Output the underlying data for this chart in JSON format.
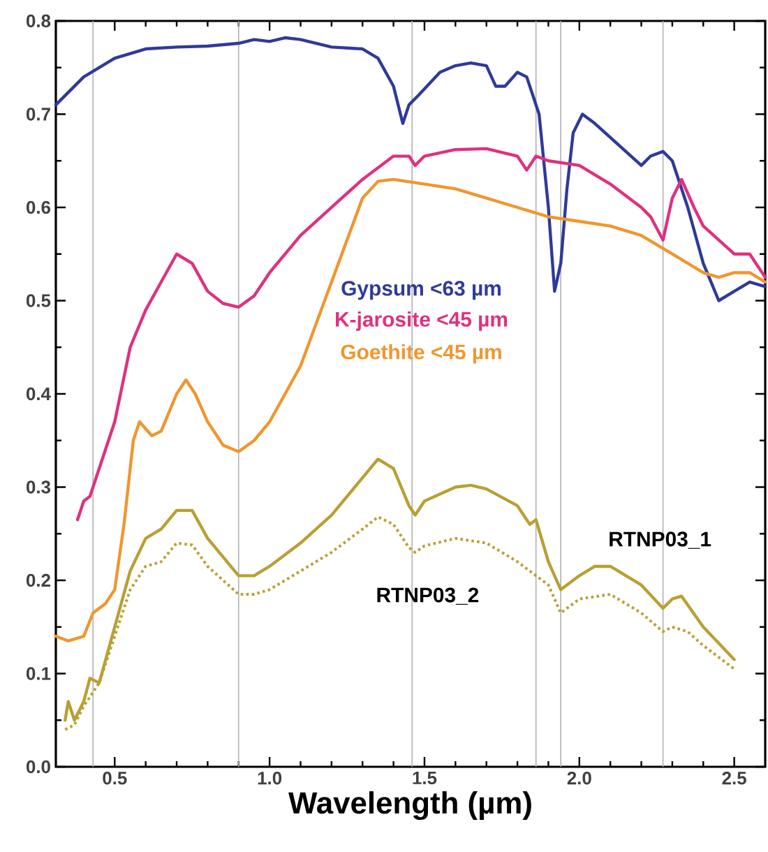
{
  "chart_data": {
    "type": "line",
    "xlabel": "Wavelength (µm)",
    "xlim": [
      0.31,
      2.6
    ],
    "ylim": [
      0,
      0.8
    ],
    "xticks": [
      0.5,
      {
        "value": 1.0,
        "label": "1.0"
      },
      1.5,
      {
        "value": 2.0,
        "label": "2.0"
      },
      2.5
    ],
    "yticks": [
      {
        "value": 0,
        "label": "0.0"
      },
      0.1,
      0.2,
      0.3,
      0.4,
      0.5,
      0.6,
      0.7,
      0.8
    ],
    "grid": false,
    "marker": "none",
    "ref_lines": [
      {
        "axis": "x",
        "value": 0.43,
        "color": "#b0b0b0"
      },
      {
        "axis": "x",
        "value": 0.9,
        "color": "#b0b0b0"
      },
      {
        "axis": "x",
        "value": 1.46,
        "color": "#b0b0b0"
      },
      {
        "axis": "x",
        "value": 1.86,
        "color": "#b0b0b0"
      },
      {
        "axis": "x",
        "value": 1.94,
        "color": "#b0b0b0"
      },
      {
        "axis": "x",
        "value": 2.27,
        "color": "#b0b0b0"
      }
    ],
    "series": [
      {
        "name": "Gypsum <63 µm",
        "color": "#2e3a9a",
        "line_style": "solid",
        "x": [
          0.31,
          0.4,
          0.5,
          0.6,
          0.7,
          0.8,
          0.9,
          0.95,
          1.0,
          1.05,
          1.1,
          1.2,
          1.3,
          1.35,
          1.4,
          1.43,
          1.45,
          1.48,
          1.55,
          1.6,
          1.65,
          1.7,
          1.73,
          1.76,
          1.8,
          1.83,
          1.87,
          1.9,
          1.92,
          1.94,
          1.96,
          1.98,
          2.01,
          2.05,
          2.1,
          2.15,
          2.2,
          2.23,
          2.27,
          2.3,
          2.35,
          2.4,
          2.45,
          2.5,
          2.55,
          2.6
        ],
        "values": [
          0.71,
          0.74,
          0.76,
          0.77,
          0.772,
          0.773,
          0.776,
          0.78,
          0.778,
          0.782,
          0.78,
          0.772,
          0.77,
          0.76,
          0.73,
          0.69,
          0.71,
          0.72,
          0.745,
          0.752,
          0.755,
          0.752,
          0.73,
          0.73,
          0.745,
          0.74,
          0.7,
          0.6,
          0.51,
          0.54,
          0.62,
          0.68,
          0.7,
          0.69,
          0.675,
          0.66,
          0.645,
          0.655,
          0.66,
          0.65,
          0.6,
          0.54,
          0.5,
          0.51,
          0.52,
          0.515
        ]
      },
      {
        "name": "K-jarosite <45 µm",
        "color": "#e0307f",
        "line_style": "solid",
        "x": [
          0.38,
          0.4,
          0.42,
          0.45,
          0.5,
          0.55,
          0.6,
          0.65,
          0.7,
          0.75,
          0.8,
          0.85,
          0.9,
          0.95,
          1.0,
          1.1,
          1.2,
          1.3,
          1.4,
          1.45,
          1.47,
          1.5,
          1.6,
          1.7,
          1.8,
          1.83,
          1.86,
          1.9,
          2.0,
          2.1,
          2.2,
          2.23,
          2.27,
          2.3,
          2.33,
          2.37,
          2.4,
          2.45,
          2.5,
          2.55,
          2.6
        ],
        "values": [
          0.265,
          0.285,
          0.29,
          0.32,
          0.37,
          0.45,
          0.49,
          0.52,
          0.55,
          0.54,
          0.51,
          0.497,
          0.493,
          0.505,
          0.53,
          0.57,
          0.6,
          0.63,
          0.655,
          0.655,
          0.645,
          0.655,
          0.662,
          0.663,
          0.655,
          0.64,
          0.655,
          0.65,
          0.645,
          0.625,
          0.6,
          0.59,
          0.565,
          0.61,
          0.63,
          0.6,
          0.58,
          0.565,
          0.55,
          0.55,
          0.525
        ]
      },
      {
        "name": "Goethite <45 µm",
        "color": "#f0962e",
        "line_style": "solid",
        "x": [
          0.31,
          0.35,
          0.4,
          0.43,
          0.47,
          0.5,
          0.53,
          0.56,
          0.58,
          0.62,
          0.65,
          0.7,
          0.73,
          0.76,
          0.8,
          0.85,
          0.9,
          0.95,
          1.0,
          1.1,
          1.2,
          1.3,
          1.35,
          1.4,
          1.5,
          1.6,
          1.7,
          1.8,
          1.9,
          2.0,
          2.1,
          2.2,
          2.3,
          2.4,
          2.45,
          2.5,
          2.55,
          2.6
        ],
        "values": [
          0.14,
          0.135,
          0.14,
          0.165,
          0.175,
          0.19,
          0.26,
          0.35,
          0.37,
          0.355,
          0.36,
          0.4,
          0.415,
          0.4,
          0.37,
          0.345,
          0.338,
          0.35,
          0.37,
          0.43,
          0.52,
          0.61,
          0.628,
          0.63,
          0.625,
          0.62,
          0.61,
          0.6,
          0.59,
          0.585,
          0.58,
          0.57,
          0.55,
          0.53,
          0.525,
          0.53,
          0.53,
          0.52
        ]
      },
      {
        "name": "RTNP03_1",
        "color": "#b8a032",
        "line_style": "solid",
        "x": [
          0.34,
          0.35,
          0.37,
          0.4,
          0.42,
          0.45,
          0.5,
          0.55,
          0.6,
          0.65,
          0.7,
          0.75,
          0.8,
          0.9,
          0.95,
          1.0,
          1.1,
          1.2,
          1.3,
          1.35,
          1.4,
          1.45,
          1.47,
          1.5,
          1.6,
          1.65,
          1.7,
          1.8,
          1.84,
          1.86,
          1.9,
          1.94,
          2.0,
          2.05,
          2.1,
          2.2,
          2.27,
          2.3,
          2.33,
          2.4,
          2.5
        ],
        "values": [
          0.05,
          0.07,
          0.05,
          0.07,
          0.095,
          0.09,
          0.15,
          0.21,
          0.245,
          0.255,
          0.275,
          0.275,
          0.245,
          0.205,
          0.205,
          0.215,
          0.24,
          0.27,
          0.31,
          0.33,
          0.32,
          0.28,
          0.27,
          0.285,
          0.3,
          0.302,
          0.298,
          0.28,
          0.26,
          0.265,
          0.22,
          0.19,
          0.205,
          0.215,
          0.215,
          0.195,
          0.17,
          0.18,
          0.183,
          0.15,
          0.115
        ]
      },
      {
        "name": "RTNP03_2",
        "color": "#b8a032",
        "line_style": "dotted",
        "x": [
          0.34,
          0.37,
          0.4,
          0.45,
          0.5,
          0.55,
          0.6,
          0.65,
          0.7,
          0.75,
          0.8,
          0.9,
          0.95,
          1.0,
          1.1,
          1.2,
          1.3,
          1.35,
          1.4,
          1.45,
          1.47,
          1.5,
          1.6,
          1.7,
          1.8,
          1.86,
          1.9,
          1.94,
          2.0,
          2.1,
          2.2,
          2.27,
          2.3,
          2.35,
          2.4,
          2.5
        ],
        "values": [
          0.04,
          0.045,
          0.065,
          0.09,
          0.14,
          0.19,
          0.215,
          0.22,
          0.24,
          0.238,
          0.215,
          0.185,
          0.185,
          0.19,
          0.21,
          0.23,
          0.255,
          0.268,
          0.26,
          0.235,
          0.23,
          0.237,
          0.245,
          0.24,
          0.22,
          0.205,
          0.195,
          0.165,
          0.18,
          0.185,
          0.165,
          0.145,
          0.15,
          0.145,
          0.13,
          0.105
        ]
      }
    ]
  }
}
